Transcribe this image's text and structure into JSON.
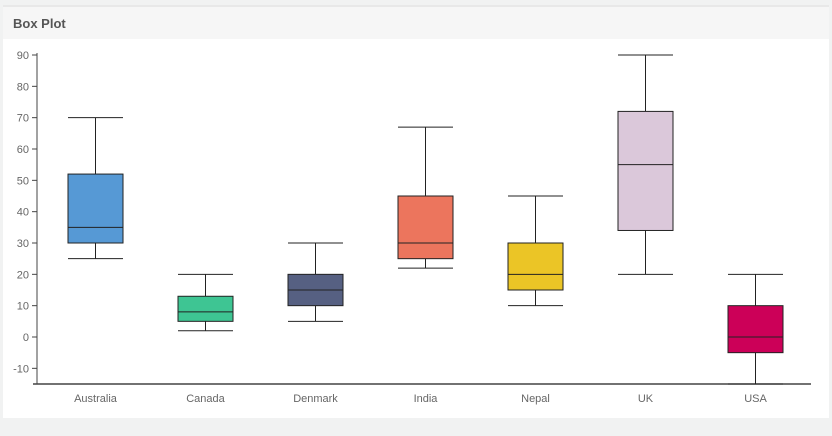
{
  "panel": {
    "title": "Box Plot"
  },
  "chart_data": {
    "type": "box",
    "title": "Box Plot",
    "xlabel": "",
    "ylabel": "",
    "ylim": [
      -15,
      90
    ],
    "yticks": [
      -10,
      0,
      10,
      20,
      30,
      40,
      50,
      60,
      70,
      80,
      90
    ],
    "grid": false,
    "categories": [
      "Australia",
      "Canada",
      "Denmark",
      "India",
      "Nepal",
      "UK",
      "USA"
    ],
    "boxes": [
      {
        "category": "Australia",
        "min": 25,
        "q1": 30,
        "median": 35,
        "q3": 52,
        "max": 70,
        "color": "#5699d5"
      },
      {
        "category": "Canada",
        "min": 2,
        "q1": 5,
        "median": 8,
        "q3": 13,
        "max": 20,
        "color": "#3ec593"
      },
      {
        "category": "Denmark",
        "min": 5,
        "q1": 10,
        "median": 15,
        "q3": 20,
        "max": 30,
        "color": "#566082"
      },
      {
        "category": "India",
        "min": 22,
        "q1": 25,
        "median": 30,
        "q3": 45,
        "max": 67,
        "color": "#ec755d"
      },
      {
        "category": "Nepal",
        "min": 10,
        "q1": 15,
        "median": 20,
        "q3": 30,
        "max": 45,
        "color": "#ebc526"
      },
      {
        "category": "UK",
        "min": 20,
        "q1": 34,
        "median": 55,
        "q3": 72,
        "max": 90,
        "color": "#dbc8da"
      },
      {
        "category": "USA",
        "min": -15,
        "q1": -5,
        "median": 0,
        "q3": 10,
        "max": 20,
        "color": "#cc0058"
      }
    ]
  }
}
